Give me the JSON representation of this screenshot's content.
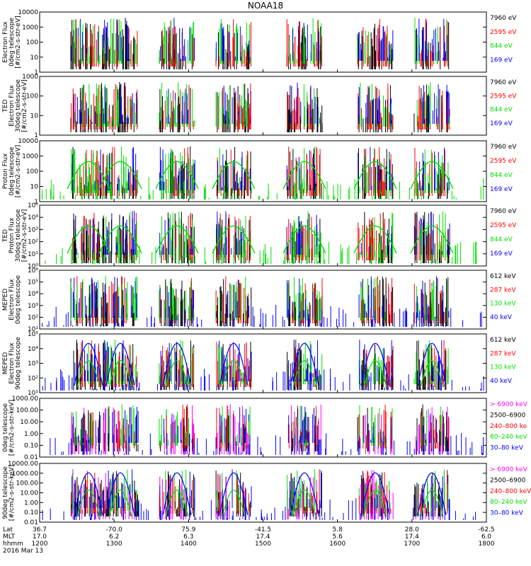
{
  "title": "NOAA18",
  "colors": {
    "black": "#000000",
    "red": "#ff0000",
    "green": "#00e000",
    "blue": "#0000ff",
    "magenta": "#ff00ff",
    "darkred": "#c00000"
  },
  "chart_data": [
    {
      "type": "scatter",
      "panel": 1,
      "ylabel": [
        "Electron Flux",
        "0deg telescope",
        "[#/cm2-s-str-eV]"
      ],
      "yticks": [
        "1",
        "10",
        "100",
        "1000",
        "10000"
      ],
      "legend": [
        {
          "label": "7960 eV",
          "color": "#000000"
        },
        {
          "label": "2595 eV",
          "color": "#ff0000"
        },
        {
          "label": "844 eV",
          "color": "#00e000"
        },
        {
          "label": "169 eV",
          "color": "#0000ff"
        }
      ]
    },
    {
      "type": "scatter",
      "panel": 2,
      "ylabel": [
        "TED",
        "Electron Flux",
        "30deg telescope",
        "[#/cm2-s-str-eV]"
      ],
      "yticks": [
        "1",
        "10",
        "100",
        "1000"
      ],
      "legend": [
        {
          "label": "7960 eV",
          "color": "#000000"
        },
        {
          "label": "2595 eV",
          "color": "#ff0000"
        },
        {
          "label": "844 eV",
          "color": "#00e000"
        },
        {
          "label": "169 eV",
          "color": "#0000ff"
        }
      ]
    },
    {
      "type": "scatter",
      "panel": 3,
      "ylabel": [
        "Proton Flux",
        "0deg telescope",
        "[#/cm2-s-str-eV]"
      ],
      "yticks": [
        "1",
        "10",
        "100",
        "1000",
        "10000"
      ],
      "legend": [
        {
          "label": "7960 eV",
          "color": "#000000"
        },
        {
          "label": "2595 eV",
          "color": "#ff0000"
        },
        {
          "label": "844 eV",
          "color": "#00e000"
        },
        {
          "label": "169 eV",
          "color": "#0000ff"
        }
      ]
    },
    {
      "type": "scatter",
      "panel": 4,
      "ylabel": [
        "TED",
        "Proton Flux",
        "30deg telescope",
        "[#/cm2-s-str-eV]"
      ],
      "yticks": [
        "10⁰",
        "10¹",
        "10²",
        "10³",
        "10⁴",
        "10⁵"
      ],
      "legend": [
        {
          "label": "7960 eV",
          "color": "#000000"
        },
        {
          "label": "2595 eV",
          "color": "#ff0000"
        },
        {
          "label": "844 eV",
          "color": "#00e000"
        },
        {
          "label": "169 eV",
          "color": "#0000ff"
        }
      ]
    },
    {
      "type": "scatter",
      "panel": 5,
      "ylabel": [
        "MEPED",
        "Electron Flux",
        "0deg telescope"
      ],
      "yticks": [
        "10¹",
        "10²",
        "10³",
        "10⁴",
        "10⁵",
        "10⁶"
      ],
      "legend": [
        {
          "label": "612 keV",
          "color": "#000000"
        },
        {
          "label": "287 keV",
          "color": "#ff0000"
        },
        {
          "label": "130 keV",
          "color": "#00e000"
        },
        {
          "label": "40 keV",
          "color": "#0000ff"
        }
      ]
    },
    {
      "type": "scatter",
      "panel": 6,
      "ylabel": [
        "MEPED",
        "Electron Flux",
        "90deg telescope"
      ],
      "yticks": [
        "10¹",
        "10²",
        "10³",
        "10⁴",
        "10⁵"
      ],
      "legend": [
        {
          "label": "612 keV",
          "color": "#000000"
        },
        {
          "label": "287 keV",
          "color": "#ff0000"
        },
        {
          "label": "130 keV",
          "color": "#00e000"
        },
        {
          "label": "40 keV",
          "color": "#0000ff"
        }
      ]
    },
    {
      "type": "scatter",
      "panel": 7,
      "ylabel": [
        "0deg telescope",
        "[#/cm2-s-str-keV]"
      ],
      "yticks": [
        "0.01",
        "0.10",
        "1.00",
        "10.00",
        "100.00",
        "1000.00"
      ],
      "legend": [
        {
          "label": "> 6900 keV",
          "color": "#ff00ff"
        },
        {
          "label": "2500–6900",
          "color": "#000000"
        },
        {
          "label": "240–800 ke",
          "color": "#ff0000"
        },
        {
          "label": "80–240 keV",
          "color": "#00e000"
        },
        {
          "label": "30–80 keV",
          "color": "#0000ff"
        }
      ]
    },
    {
      "type": "scatter",
      "panel": 8,
      "ylabel": [
        "90deg telescope",
        "[#/cm2-s-str-keV]"
      ],
      "yticks": [
        "0.01",
        "0.10",
        "1.00",
        "10.00",
        "100.00",
        "1000.00",
        "10000.00"
      ],
      "legend": [
        {
          "label": "> 6900 keV",
          "color": "#ff00ff"
        },
        {
          "label": "2500–6900",
          "color": "#000000"
        },
        {
          "label": "240–800 keV",
          "color": "#ff0000"
        },
        {
          "label": "80–240 keV",
          "color": "#00e000"
        },
        {
          "label": "30–80 keV",
          "color": "#0000ff"
        }
      ]
    }
  ],
  "x_axis": {
    "row_labels": [
      "Lat",
      "MLT",
      "hhmm"
    ],
    "date": "2016 Mar 13",
    "ticks": [
      {
        "lat": "36.7",
        "mlt": "17.0",
        "hhmm": "1200"
      },
      {
        "lat": "-70.0",
        "mlt": "6.2",
        "hhmm": "1300"
      },
      {
        "lat": "75.9",
        "mlt": "6.3",
        "hhmm": "1400"
      },
      {
        "lat": "-41.5",
        "mlt": "17.4",
        "hhmm": "1500"
      },
      {
        "lat": "5.8",
        "mlt": "5.6",
        "hhmm": "1600"
      },
      {
        "lat": "28.0",
        "mlt": "17.4",
        "hhmm": "1700"
      },
      {
        "lat": "-62.5",
        "mlt": "6.0",
        "hhmm": "1800"
      }
    ]
  }
}
